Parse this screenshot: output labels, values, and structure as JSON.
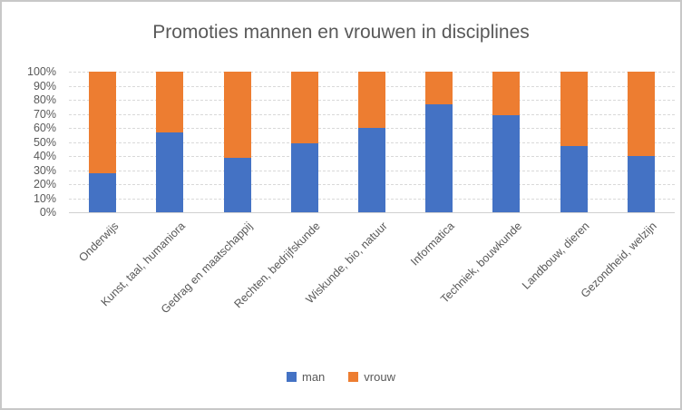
{
  "title": "Promoties mannen en vrouwen in disciplines",
  "colors": {
    "man": "#4472C4",
    "vrouw": "#ED7D31",
    "text": "#595959",
    "gridline": "#D9D9D9",
    "border": "#C8C8C8"
  },
  "legend": {
    "items": [
      {
        "label": "man",
        "color": "#4472C4"
      },
      {
        "label": "vrouw",
        "color": "#ED7D31"
      }
    ],
    "position": "bottom"
  },
  "chart_data": {
    "type": "bar",
    "stacked": true,
    "percent_stacked": true,
    "title": "Promoties mannen en vrouwen in disciplines",
    "categories": [
      "Onderwijs",
      "Kunst, taal, humaniora",
      "Gedrag en maatschappij",
      "Rechten, bedrijfskunde",
      "Wiskunde, bio, natuur",
      "Informatica",
      "Techniek, bouwkunde",
      "Landbouw, dieren",
      "Gezondheid, welzijn"
    ],
    "series": [
      {
        "name": "man",
        "color": "#4472C4",
        "values": [
          28,
          57,
          39,
          49,
          60,
          77,
          69,
          47,
          40
        ]
      },
      {
        "name": "vrouw",
        "color": "#ED7D31",
        "values": [
          72,
          43,
          61,
          51,
          40,
          23,
          31,
          53,
          60
        ]
      }
    ],
    "xlabel": "",
    "ylabel": "",
    "ylim": [
      0,
      100
    ],
    "y_tick_labels": [
      "100%",
      "90%",
      "80%",
      "70%",
      "60%",
      "50%",
      "40%",
      "30%",
      "20%",
      "10%",
      "0%"
    ],
    "grid": "horizontal-dashed",
    "legend_position": "bottom"
  }
}
